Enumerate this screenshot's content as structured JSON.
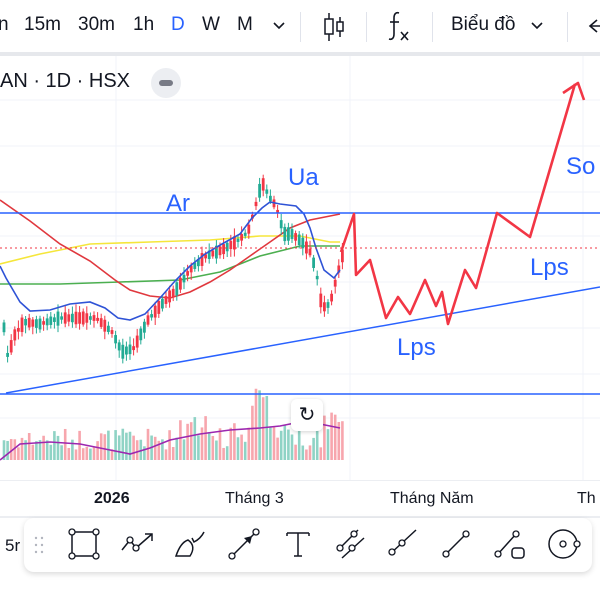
{
  "toolbar": {
    "timeframes": [
      "n",
      "15m",
      "30m",
      "1h",
      "D",
      "W",
      "M"
    ],
    "active_timeframe": "D",
    "chart_type_icon": "candles-icon",
    "indicators_icon": "fx-icon",
    "layout_menu_label": "Biểu đồ",
    "undo_icon": "arrow-left-icon"
  },
  "legend": {
    "symbol_line": "AN · 1D · HSX"
  },
  "annotations": {
    "ar": "Ar",
    "ua": "Ua",
    "sos": "So",
    "lps_upper": "Lps",
    "lps_lower": "Lps"
  },
  "time_axis": {
    "labels": [
      "2026",
      "Tháng 3",
      "Tháng Năm",
      "Th"
    ]
  },
  "bottom": {
    "interval_cut": "5r",
    "tools": [
      "rectangle-tool-icon",
      "path-tool-icon",
      "brush-tool-icon",
      "arrow-tool-icon",
      "text-tool-icon",
      "parallel-channel-tool-icon",
      "ray-tool-icon",
      "trend-line-tool-icon",
      "price-range-tool-icon",
      "circle-tool-icon"
    ]
  },
  "colors": {
    "up": "#22ab94",
    "down": "#f23645",
    "annotation_blue": "#2962ff",
    "forecast_red": "#f23645",
    "ma_blue": "#2f53d6",
    "ma_red": "#e0383e",
    "ma_yellow": "#f5e63b",
    "ma_green": "#4caf50",
    "volume_ma": "#9c27b0"
  }
}
